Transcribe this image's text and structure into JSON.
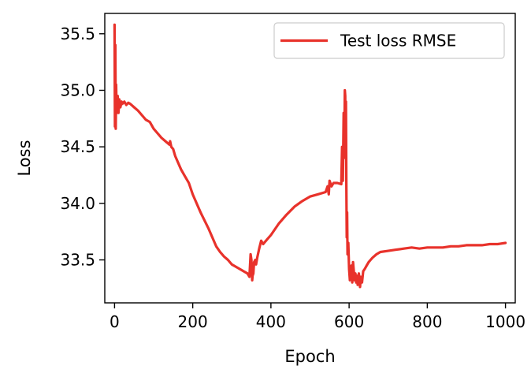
{
  "chart_data": {
    "type": "line",
    "xlabel": "Epoch",
    "ylabel": "Loss",
    "xlim": [
      -25,
      1025
    ],
    "ylim": [
      33.12,
      35.68
    ],
    "xticks": [
      0,
      200,
      400,
      600,
      800,
      1000
    ],
    "xtick_labels": [
      "0",
      "200",
      "400",
      "600",
      "800",
      "1000"
    ],
    "yticks": [
      33.5,
      34.0,
      34.5,
      35.0,
      35.5
    ],
    "ytick_labels": [
      "33.5",
      "34.0",
      "34.5",
      "35.0",
      "35.5"
    ],
    "grid": false,
    "legend_position": "upper right",
    "series": [
      {
        "name": "Test loss RMSE",
        "color": "#e8322b",
        "x": [
          0,
          1,
          2,
          3,
          4,
          5,
          6,
          8,
          10,
          12,
          15,
          18,
          20,
          25,
          30,
          35,
          40,
          50,
          60,
          70,
          80,
          90,
          100,
          110,
          120,
          130,
          140,
          142,
          145,
          150,
          155,
          160,
          170,
          180,
          190,
          200,
          220,
          240,
          260,
          270,
          280,
          290,
          300,
          310,
          320,
          330,
          340,
          345,
          348,
          350,
          352,
          353,
          355,
          357,
          360,
          362,
          365,
          370,
          375,
          380,
          390,
          400,
          420,
          440,
          460,
          480,
          500,
          520,
          540,
          545,
          548,
          550,
          555,
          560,
          570,
          580,
          582,
          584,
          586,
          588,
          589,
          590,
          591,
          592,
          593,
          594,
          595,
          596,
          598,
          600,
          602,
          604,
          606,
          608,
          610,
          612,
          614,
          616,
          618,
          620,
          622,
          625,
          628,
          630,
          633,
          636,
          640,
          645,
          650,
          655,
          660,
          670,
          680,
          700,
          720,
          740,
          760,
          780,
          800,
          820,
          840,
          860,
          880,
          900,
          920,
          940,
          960,
          980,
          1000
        ],
        "y": [
          35.58,
          34.68,
          35.4,
          34.66,
          35.05,
          34.85,
          34.8,
          34.95,
          34.8,
          34.92,
          34.85,
          34.9,
          34.88,
          34.9,
          34.87,
          34.89,
          34.88,
          34.85,
          34.82,
          34.78,
          34.74,
          34.72,
          34.66,
          34.62,
          34.58,
          34.55,
          34.52,
          34.55,
          34.5,
          34.48,
          34.42,
          34.38,
          34.3,
          34.24,
          34.18,
          34.08,
          33.92,
          33.78,
          33.62,
          33.57,
          33.53,
          33.5,
          33.46,
          33.44,
          33.42,
          33.4,
          33.38,
          33.35,
          33.55,
          33.5,
          33.32,
          33.36,
          33.38,
          33.48,
          33.5,
          33.46,
          33.52,
          33.6,
          33.67,
          33.64,
          33.68,
          33.72,
          33.82,
          33.9,
          33.97,
          34.02,
          34.06,
          34.08,
          34.1,
          34.15,
          34.08,
          34.2,
          34.15,
          34.18,
          34.18,
          34.17,
          34.5,
          34.2,
          34.8,
          34.6,
          35.0,
          34.95,
          34.4,
          34.9,
          34.2,
          33.7,
          33.92,
          33.55,
          33.65,
          33.42,
          33.32,
          33.38,
          33.45,
          33.3,
          33.48,
          33.4,
          33.32,
          33.38,
          33.3,
          33.36,
          33.28,
          33.38,
          33.26,
          33.35,
          33.3,
          33.4,
          33.42,
          33.45,
          33.48,
          33.5,
          33.52,
          33.55,
          33.57,
          33.58,
          33.59,
          33.6,
          33.61,
          33.6,
          33.61,
          33.61,
          33.61,
          33.62,
          33.62,
          33.63,
          33.63,
          33.63,
          33.64,
          33.64,
          33.65
        ]
      }
    ]
  }
}
